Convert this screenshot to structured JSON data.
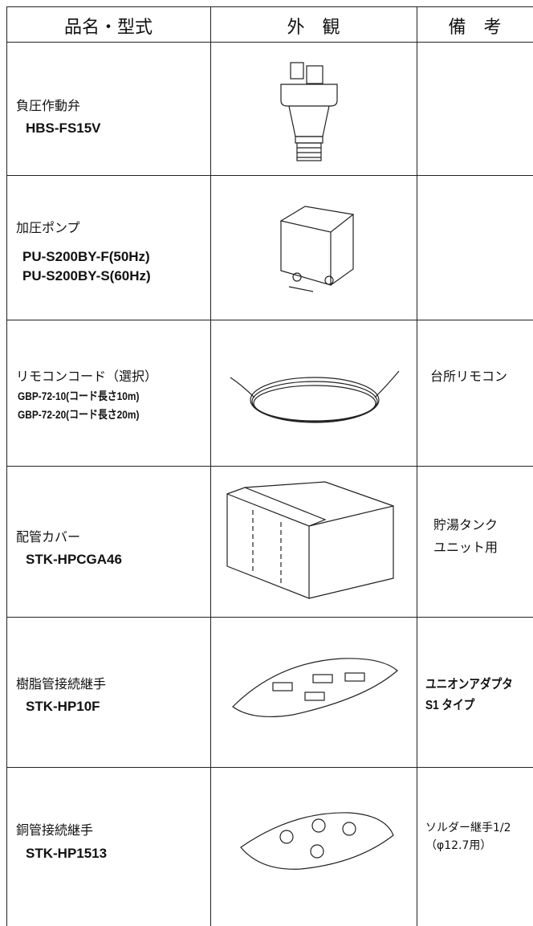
{
  "table": {
    "header": [
      "品名・型式",
      "外　観",
      "備　考"
    ],
    "rows": [
      {
        "name": "負圧作動弁",
        "models": [
          "HBS-FS15V"
        ],
        "remarks": []
      },
      {
        "name": "加圧ポンプ",
        "models": [
          "PU-S200BY-F(50Hz)",
          "PU-S200BY-S(60Hz)"
        ],
        "remarks": []
      },
      {
        "name": "リモコンコード（選択）",
        "models": [
          "GBP-72-10(コード長さ10m)",
          "GBP-72-20(コード長さ20m)"
        ],
        "remarks": [
          "台所リモコン"
        ]
      },
      {
        "name": "配管カバー",
        "models": [
          "STK-HPCGA46"
        ],
        "remarks": [
          "貯湯タンク",
          "ユニット用"
        ]
      },
      {
        "name": "樹脂管接続継手",
        "models": [
          "STK-HP10F"
        ],
        "remarks": [
          "ユニオンアダプタ",
          "S1 タイプ"
        ]
      },
      {
        "name": "銅管接続継手",
        "models": [
          "STK-HP1513"
        ],
        "remarks": [
          "ソルダー継手1/2",
          "（φ12.7用）"
        ]
      }
    ]
  }
}
